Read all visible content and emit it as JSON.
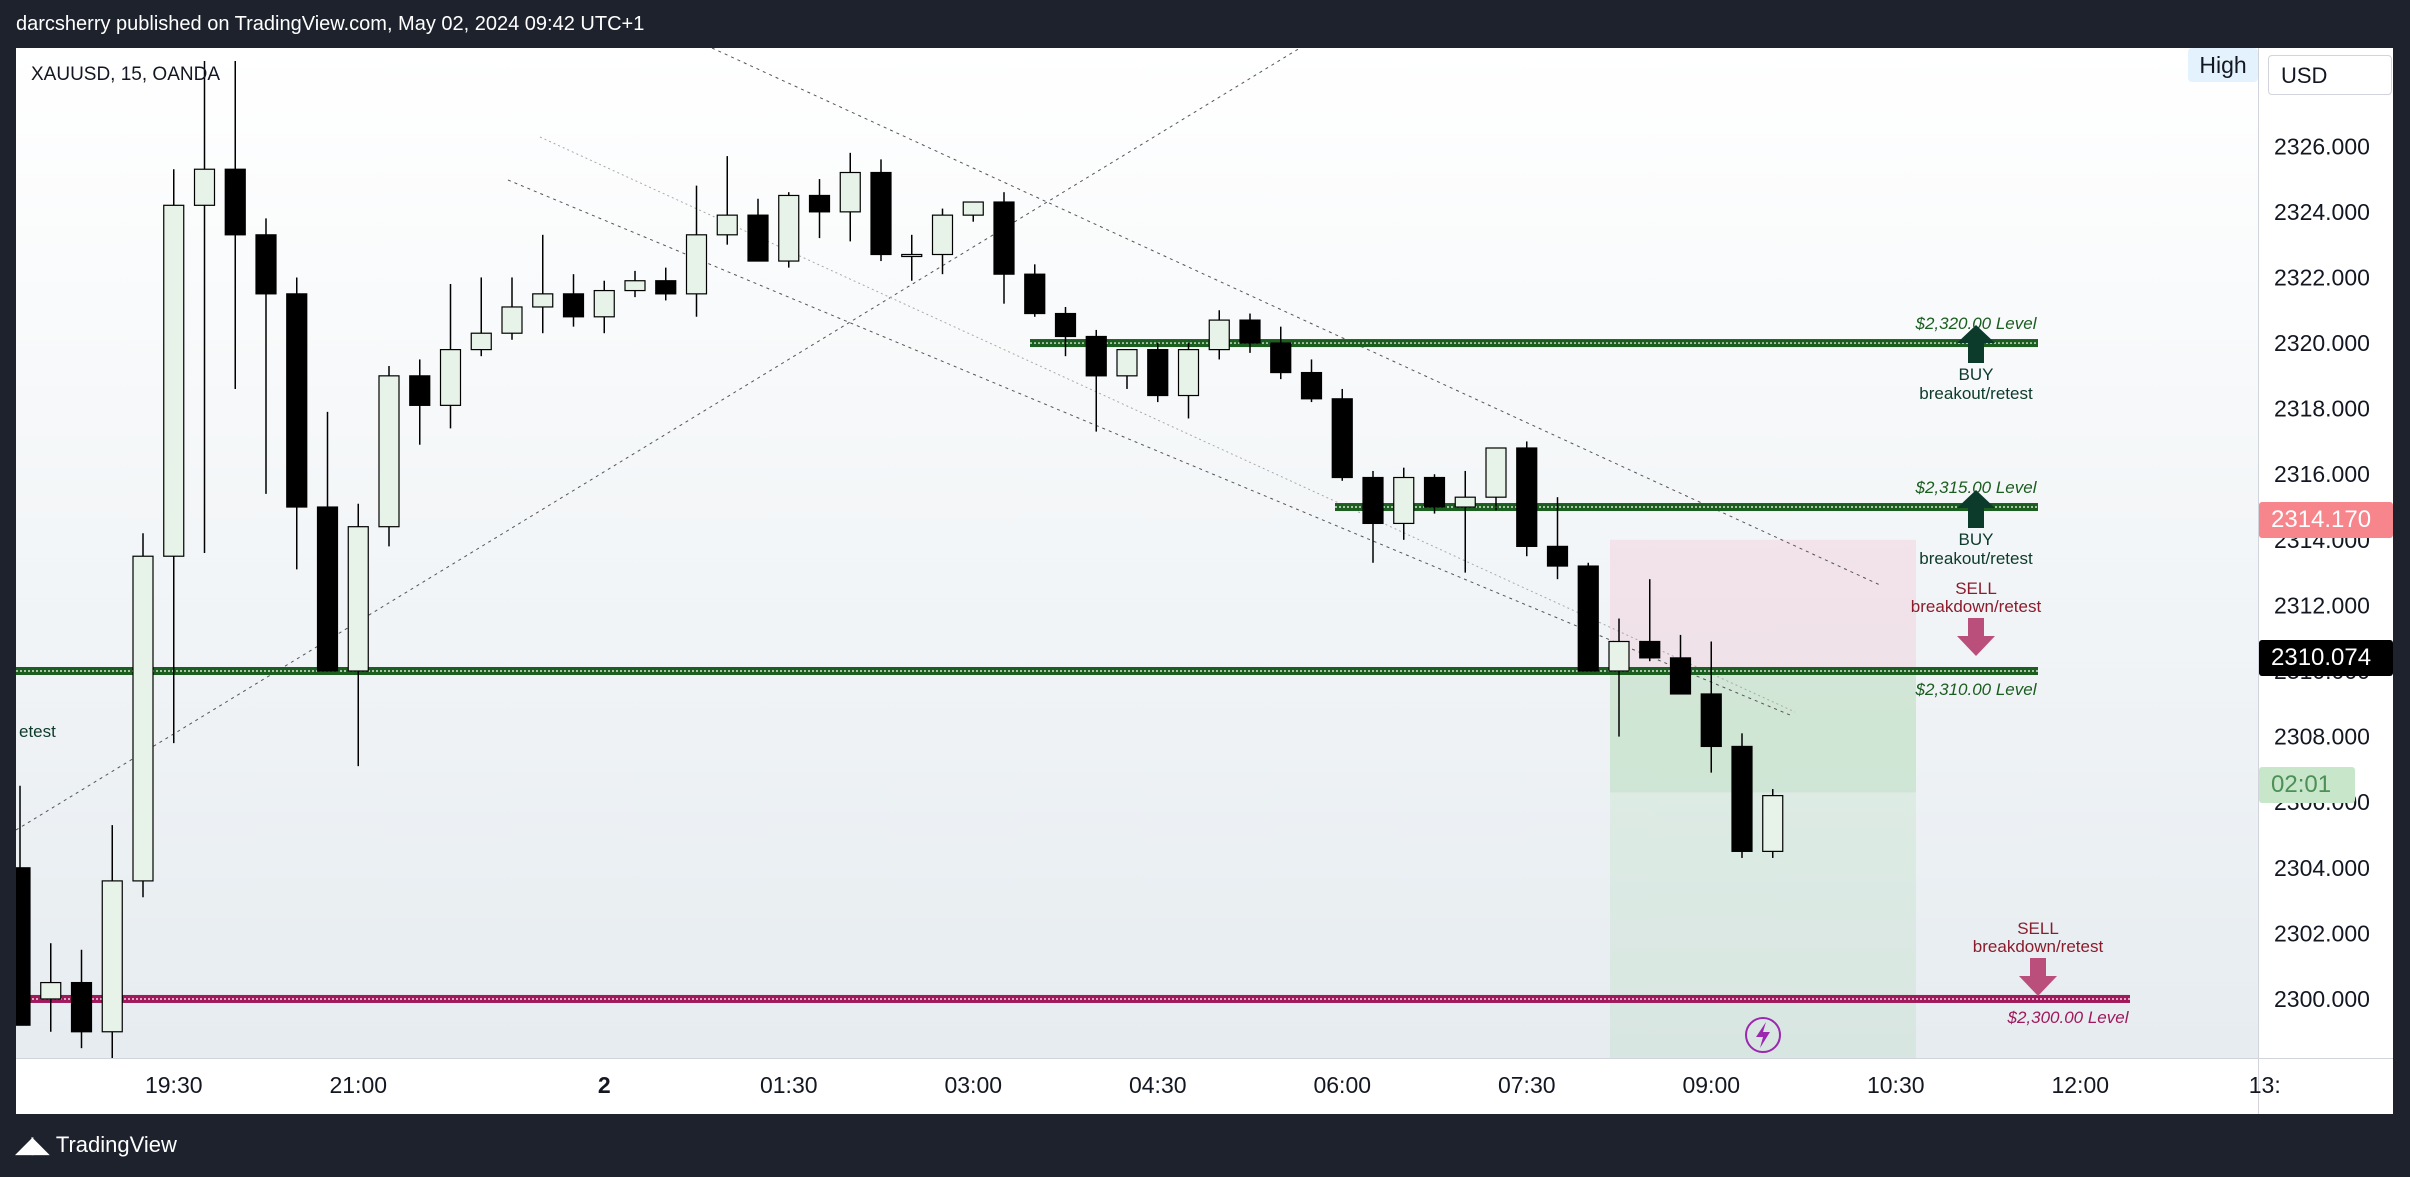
{
  "header": {
    "published": "darcsherry published on TradingView.com, May 02, 2024 09:42 UTC+1"
  },
  "footer": {
    "brand": "TradingView",
    "logo_icon": "tradingview-logo-icon"
  },
  "symbol": "XAUUSD, 15, OANDA",
  "badges": {
    "high": "High",
    "currency": "USD"
  },
  "price_tags": {
    "high_marker": "2314.170",
    "current": "2310.074",
    "timer": "02:01"
  },
  "colors": {
    "up_fill": "#e7f3e8",
    "down_fill": "#000000",
    "level_green": "#1b5e20",
    "level_pink": "#a0195c",
    "profit_zone": "#4caf50",
    "loss_zone": "#f48fb1",
    "buy_arrow": "#0d3b2b",
    "sell_arrow": "#b94f7a"
  },
  "chart_data": {
    "type": "candlestick",
    "symbol": "XAUUSD",
    "interval": "15",
    "source": "OANDA",
    "y_ticks": [
      "2326.000",
      "2324.000",
      "2322.000",
      "2320.000",
      "2318.000",
      "2316.000",
      "2314.000",
      "2312.000",
      "2310.000",
      "2308.000",
      "2306.000",
      "2304.000",
      "2302.000",
      "2300.000"
    ],
    "ylim": [
      2298.2,
      2328.6
    ],
    "x_ticks": [
      "19:30",
      "21:00",
      "2",
      "01:30",
      "03:00",
      "04:30",
      "06:00",
      "07:30",
      "09:00",
      "10:30",
      "12:00",
      "13:"
    ],
    "x_tick_index": [
      5,
      11,
      19,
      25,
      31,
      37,
      43,
      49,
      55,
      61,
      67,
      73
    ],
    "candles": [
      {
        "o": 2304.0,
        "h": 2306.5,
        "l": 2299.2,
        "c": 2299.2
      },
      {
        "o": 2300.0,
        "h": 2301.7,
        "l": 2299.0,
        "c": 2300.5
      },
      {
        "o": 2300.5,
        "h": 2301.5,
        "l": 2298.5,
        "c": 2299.0
      },
      {
        "o": 2299.0,
        "h": 2305.3,
        "l": 2298.2,
        "c": 2303.6
      },
      {
        "o": 2303.6,
        "h": 2314.2,
        "l": 2303.1,
        "c": 2313.5
      },
      {
        "o": 2313.5,
        "h": 2325.3,
        "l": 2307.8,
        "c": 2324.2
      },
      {
        "o": 2324.2,
        "h": 2328.6,
        "l": 2313.6,
        "c": 2325.3
      },
      {
        "o": 2325.3,
        "h": 2328.6,
        "l": 2318.6,
        "c": 2323.3
      },
      {
        "o": 2323.3,
        "h": 2323.8,
        "l": 2315.4,
        "c": 2321.5
      },
      {
        "o": 2321.5,
        "h": 2322.0,
        "l": 2313.1,
        "c": 2315.0
      },
      {
        "o": 2315.0,
        "h": 2317.9,
        "l": 2310.0,
        "c": 2310.0
      },
      {
        "o": 2310.0,
        "h": 2315.1,
        "l": 2307.1,
        "c": 2314.4
      },
      {
        "o": 2314.4,
        "h": 2319.3,
        "l": 2313.8,
        "c": 2319.0
      },
      {
        "o": 2319.0,
        "h": 2319.5,
        "l": 2316.9,
        "c": 2318.1
      },
      {
        "o": 2318.1,
        "h": 2321.8,
        "l": 2317.4,
        "c": 2319.8
      },
      {
        "o": 2319.8,
        "h": 2322.0,
        "l": 2319.6,
        "c": 2320.3
      },
      {
        "o": 2320.3,
        "h": 2322.0,
        "l": 2320.1,
        "c": 2321.1
      },
      {
        "o": 2321.1,
        "h": 2323.3,
        "l": 2320.3,
        "c": 2321.5
      },
      {
        "o": 2321.5,
        "h": 2322.1,
        "l": 2320.5,
        "c": 2320.8
      },
      {
        "o": 2320.8,
        "h": 2321.9,
        "l": 2320.3,
        "c": 2321.6
      },
      {
        "o": 2321.6,
        "h": 2322.2,
        "l": 2321.4,
        "c": 2321.9
      },
      {
        "o": 2321.9,
        "h": 2322.3,
        "l": 2321.3,
        "c": 2321.5
      },
      {
        "o": 2321.5,
        "h": 2324.8,
        "l": 2320.8,
        "c": 2323.3
      },
      {
        "o": 2323.3,
        "h": 2325.7,
        "l": 2323.0,
        "c": 2323.9
      },
      {
        "o": 2323.9,
        "h": 2324.4,
        "l": 2322.6,
        "c": 2322.5
      },
      {
        "o": 2322.5,
        "h": 2324.6,
        "l": 2322.3,
        "c": 2324.5
      },
      {
        "o": 2324.5,
        "h": 2325.0,
        "l": 2323.2,
        "c": 2324.0
      },
      {
        "o": 2324.0,
        "h": 2325.8,
        "l": 2323.1,
        "c": 2325.2
      },
      {
        "o": 2325.2,
        "h": 2325.6,
        "l": 2322.5,
        "c": 2322.7
      },
      {
        "o": 2322.7,
        "h": 2323.3,
        "l": 2321.9,
        "c": 2322.7
      },
      {
        "o": 2322.7,
        "h": 2324.1,
        "l": 2322.1,
        "c": 2323.9
      },
      {
        "o": 2323.9,
        "h": 2324.3,
        "l": 2323.7,
        "c": 2324.3
      },
      {
        "o": 2324.3,
        "h": 2324.6,
        "l": 2321.2,
        "c": 2322.1
      },
      {
        "o": 2322.1,
        "h": 2322.4,
        "l": 2320.8,
        "c": 2320.9
      },
      {
        "o": 2320.9,
        "h": 2321.1,
        "l": 2319.6,
        "c": 2320.2
      },
      {
        "o": 2320.2,
        "h": 2320.4,
        "l": 2317.3,
        "c": 2319.0
      },
      {
        "o": 2319.0,
        "h": 2319.8,
        "l": 2318.6,
        "c": 2319.8
      },
      {
        "o": 2319.8,
        "h": 2320.0,
        "l": 2318.2,
        "c": 2318.4
      },
      {
        "o": 2318.4,
        "h": 2320.0,
        "l": 2317.7,
        "c": 2319.8
      },
      {
        "o": 2319.8,
        "h": 2321.0,
        "l": 2319.5,
        "c": 2320.7
      },
      {
        "o": 2320.7,
        "h": 2320.9,
        "l": 2319.7,
        "c": 2320.0
      },
      {
        "o": 2320.0,
        "h": 2320.5,
        "l": 2318.9,
        "c": 2319.1
      },
      {
        "o": 2319.1,
        "h": 2319.5,
        "l": 2318.2,
        "c": 2318.3
      },
      {
        "o": 2318.3,
        "h": 2318.6,
        "l": 2315.8,
        "c": 2315.9
      },
      {
        "o": 2315.9,
        "h": 2316.1,
        "l": 2313.3,
        "c": 2314.5
      },
      {
        "o": 2314.5,
        "h": 2316.2,
        "l": 2314.0,
        "c": 2315.9
      },
      {
        "o": 2315.9,
        "h": 2316.0,
        "l": 2314.8,
        "c": 2315.0
      },
      {
        "o": 2315.0,
        "h": 2316.1,
        "l": 2313.0,
        "c": 2315.3
      },
      {
        "o": 2315.3,
        "h": 2316.7,
        "l": 2314.9,
        "c": 2316.8
      },
      {
        "o": 2316.8,
        "h": 2317.0,
        "l": 2313.5,
        "c": 2313.8
      },
      {
        "o": 2313.8,
        "h": 2315.3,
        "l": 2312.8,
        "c": 2313.2
      },
      {
        "o": 2313.2,
        "h": 2313.3,
        "l": 2310.0,
        "c": 2310.0
      },
      {
        "o": 2310.0,
        "h": 2311.6,
        "l": 2308.0,
        "c": 2310.9
      },
      {
        "o": 2310.9,
        "h": 2312.8,
        "l": 2310.3,
        "c": 2310.4
      },
      {
        "o": 2310.4,
        "h": 2311.1,
        "l": 2309.6,
        "c": 2309.3
      },
      {
        "o": 2309.3,
        "h": 2310.9,
        "l": 2306.9,
        "c": 2307.7
      },
      {
        "o": 2307.7,
        "h": 2308.1,
        "l": 2304.3,
        "c": 2304.5
      },
      {
        "o": 2304.5,
        "h": 2306.4,
        "l": 2304.3,
        "c": 2306.2
      }
    ],
    "levels": [
      {
        "price": 2320.0,
        "label": "$2,320.00 Level"
      },
      {
        "price": 2315.0,
        "label": "$2,315.00 Level"
      },
      {
        "price": 2310.0,
        "label": "$2,310.00 Level"
      },
      {
        "price": 2300.0,
        "label": "$2,300.00 Level"
      }
    ],
    "annotations": [
      {
        "side": "BUY",
        "text": "breakout/retest",
        "level": 2320.0
      },
      {
        "side": "BUY",
        "text": "breakout/retest",
        "level": 2315.0
      },
      {
        "side": "SELL",
        "text": "breakdown/retest",
        "level": 2310.0
      },
      {
        "side": "SELL",
        "text": "breakdown/retest",
        "level": 2300.0
      }
    ],
    "partial_label": "etest",
    "position_zone": {
      "entry": 2310.0,
      "stop": 2314.0,
      "target": 2298.2,
      "filled_to": 2306.3
    },
    "grid": false
  }
}
